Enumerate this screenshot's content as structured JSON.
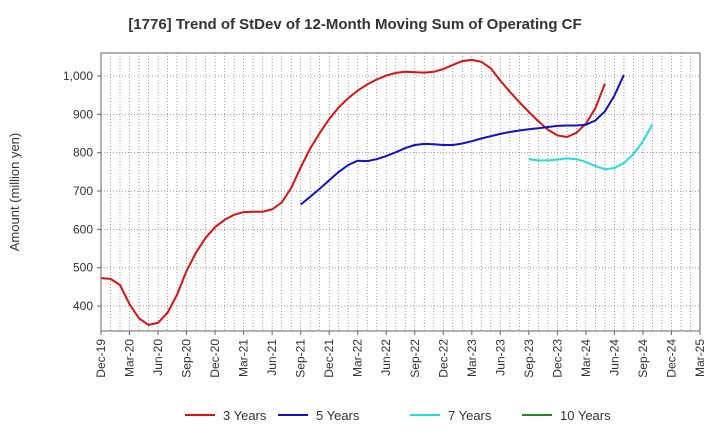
{
  "chart_data": {
    "type": "line",
    "title": "[1776]  Trend of StDev of 12-Month Moving Sum of Operating CF",
    "xlabel": "",
    "ylabel": "Amount (million yen)",
    "ylim": [
      335,
      1060
    ],
    "yticks": [
      400,
      500,
      600,
      700,
      800,
      900,
      1000
    ],
    "ytick_labels": [
      "400",
      "500",
      "600",
      "700",
      "800",
      "900",
      "1,000"
    ],
    "x_tick_labels": [
      "Dec-19",
      "Mar-20",
      "Jun-20",
      "Sep-20",
      "Dec-20",
      "Mar-21",
      "Jun-21",
      "Sep-21",
      "Dec-21",
      "Mar-22",
      "Jun-22",
      "Sep-22",
      "Dec-22",
      "Mar-23",
      "Jun-23",
      "Sep-23",
      "Dec-23",
      "Mar-24",
      "Jun-24",
      "Sep-24",
      "Dec-24",
      "Mar-25"
    ],
    "x_range_months": [
      0,
      63
    ],
    "grid": true,
    "legend_position": "bottom",
    "series": [
      {
        "name": "3 Years",
        "color": "#dd1111",
        "start_month": 0,
        "values": [
          473,
          471,
          455,
          405,
          368,
          351,
          356,
          383,
          430,
          492,
          540,
          578,
          606,
          625,
          638,
          645,
          646,
          646,
          652,
          670,
          708,
          762,
          811,
          851,
          888,
          918,
          942,
          962,
          978,
          991,
          1001,
          1008,
          1011,
          1010,
          1009,
          1011,
          1018,
          1029,
          1039,
          1042,
          1037,
          1020,
          988,
          959,
          932,
          906,
          882,
          860,
          845,
          841,
          852,
          876,
          916,
          980
        ]
      },
      {
        "name": "5 Years",
        "color": "#1111cc",
        "start_month": 21,
        "values": [
          665,
          685,
          706,
          728,
          750,
          768,
          779,
          778,
          783,
          791,
          801,
          812,
          820,
          823,
          822,
          820,
          820,
          824,
          830,
          837,
          843,
          849,
          854,
          858,
          861,
          864,
          867,
          870,
          871,
          871,
          873,
          884,
          908,
          949,
          1003
        ]
      },
      {
        "name": "7 Years",
        "color": "#22dddd",
        "start_month": 45,
        "values": [
          783,
          780,
          780,
          782,
          785,
          783,
          776,
          765,
          757,
          760,
          773,
          796,
          830,
          874
        ]
      },
      {
        "name": "10 Years",
        "color": "#228822",
        "start_month": 0,
        "values": []
      }
    ]
  }
}
